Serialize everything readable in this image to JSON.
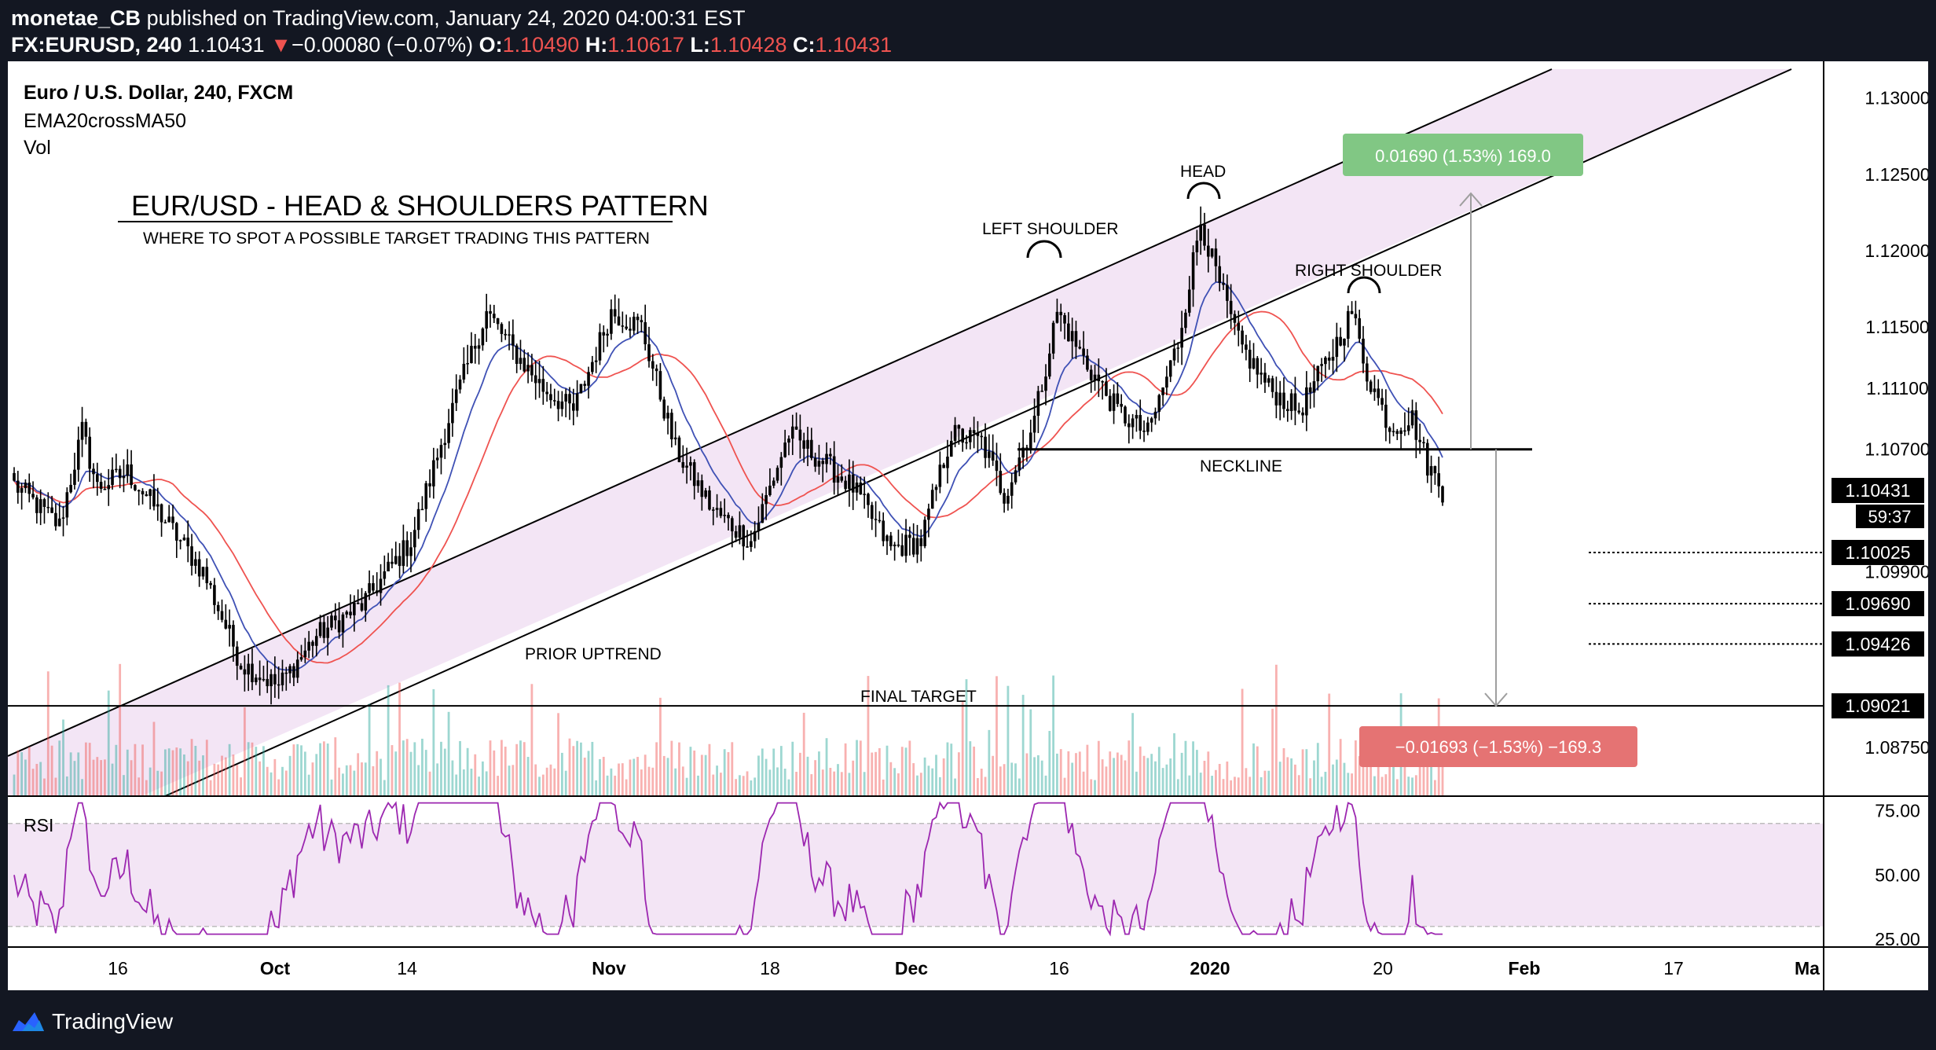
{
  "header": {
    "publisher": "monetae_CB",
    "published_text": "published on TradingView.com, January 24, 2020 04:00:31 EST",
    "symbol": "FX:EURUSD, 240",
    "last": "1.10431",
    "arrow": "▼",
    "change": "−0.00080 (−0.07%)",
    "o_label": "O:",
    "o_value": "1.10490",
    "h_label": "H:",
    "h_value": "1.10617",
    "l_label": "L:",
    "l_value": "1.10428",
    "c_label": "C:",
    "c_value": "1.10431"
  },
  "legend": {
    "line1": "Euro / U.S. Dollar, 240, FXCM",
    "line2": "EMA20crossMA50",
    "line3": "Vol"
  },
  "annotations": {
    "title": "EUR/USD - HEAD & SHOULDERS PATTERN",
    "subtitle": "WHERE TO SPOT A POSSIBLE TARGET TRADING THIS PATTERN",
    "left_shoulder": "LEFT SHOULDER",
    "head": "HEAD",
    "right_shoulder": "RIGHT SHOULDER",
    "neckline": "NECKLINE",
    "prior_uptrend": "PRIOR UPTREND",
    "final_target": "FINAL TARGET",
    "measure_up": "0.01690 (1.53%) 169.0",
    "measure_down": "−0.01693 (−1.53%) −169.3"
  },
  "price_axis": {
    "ticks": [
      "1.13000",
      "1.12500",
      "1.12000",
      "1.11500",
      "1.11100",
      "1.10700",
      "1.09900",
      "1.08750"
    ],
    "tick_values": [
      1.13,
      1.125,
      1.12,
      1.115,
      1.111,
      1.107,
      1.099,
      1.0875
    ],
    "current_price": "1.10431",
    "countdown": "59:37",
    "level_labels": [
      "1.10025",
      "1.09690",
      "1.09426",
      "1.09021"
    ],
    "level_values": [
      1.10025,
      1.0969,
      1.09426,
      1.09021
    ]
  },
  "rsi": {
    "label": "RSI",
    "ticks": [
      "75.00",
      "50.00",
      "25.00"
    ],
    "tick_values": [
      75,
      50,
      25
    ],
    "band": [
      30,
      70
    ]
  },
  "time_axis": {
    "labels": [
      "16",
      "Oct",
      "14",
      "Nov",
      "18",
      "Dec",
      "16",
      "2020",
      "20",
      "Feb",
      "17",
      "Ma"
    ],
    "bold": [
      false,
      true,
      false,
      true,
      false,
      true,
      false,
      true,
      false,
      true,
      false,
      true
    ]
  },
  "colors": {
    "up": "#26a69a",
    "down": "#ef5350",
    "candle": "#000000",
    "ema": "#3f51b5",
    "ma": "#ef5350",
    "channel_fill": "#f3e5f5",
    "rsi_line": "#9c27b0",
    "rsi_band": "#f3e5f5",
    "measure_up_bg": "#81c784",
    "measure_down_bg": "#e57373"
  },
  "chart_data": {
    "type": "candlestick",
    "symbol": "FX:EURUSD",
    "timeframe": "240",
    "y_range": [
      1.0843,
      1.1324
    ],
    "neckline": 1.107,
    "final_target": 1.09021,
    "anchors": [
      {
        "i": 0,
        "p": 1.1047
      },
      {
        "i": 12,
        "p": 1.102
      },
      {
        "i": 18,
        "p": 1.1082
      },
      {
        "i": 22,
        "p": 1.1045
      },
      {
        "i": 30,
        "p": 1.1055
      },
      {
        "i": 38,
        "p": 1.103
      },
      {
        "i": 50,
        "p": 1.099
      },
      {
        "i": 60,
        "p": 1.093
      },
      {
        "i": 70,
        "p": 1.0915
      },
      {
        "i": 80,
        "p": 1.0948
      },
      {
        "i": 92,
        "p": 1.0968
      },
      {
        "i": 105,
        "p": 1.101
      },
      {
        "i": 115,
        "p": 1.109
      },
      {
        "i": 125,
        "p": 1.116
      },
      {
        "i": 132,
        "p": 1.1135
      },
      {
        "i": 140,
        "p": 1.111
      },
      {
        "i": 148,
        "p": 1.1095
      },
      {
        "i": 158,
        "p": 1.116
      },
      {
        "i": 166,
        "p": 1.115
      },
      {
        "i": 175,
        "p": 1.107
      },
      {
        "i": 185,
        "p": 1.103
      },
      {
        "i": 195,
        "p": 1.101
      },
      {
        "i": 205,
        "p": 1.108
      },
      {
        "i": 215,
        "p": 1.106
      },
      {
        "i": 222,
        "p": 1.1045
      },
      {
        "i": 232,
        "p": 1.1005
      },
      {
        "i": 240,
        "p": 1.101
      },
      {
        "i": 248,
        "p": 1.108
      },
      {
        "i": 256,
        "p": 1.1075
      },
      {
        "i": 262,
        "p": 1.104
      },
      {
        "i": 270,
        "p": 1.109
      },
      {
        "i": 276,
        "p": 1.116
      },
      {
        "i": 284,
        "p": 1.1125
      },
      {
        "i": 292,
        "p": 1.1095
      },
      {
        "i": 300,
        "p": 1.108
      },
      {
        "i": 308,
        "p": 1.114
      },
      {
        "i": 314,
        "p": 1.122
      },
      {
        "i": 318,
        "p": 1.1185
      },
      {
        "i": 324,
        "p": 1.114
      },
      {
        "i": 332,
        "p": 1.111
      },
      {
        "i": 340,
        "p": 1.1095
      },
      {
        "i": 348,
        "p": 1.113
      },
      {
        "i": 354,
        "p": 1.116
      },
      {
        "i": 358,
        "p": 1.112
      },
      {
        "i": 364,
        "p": 1.1085
      },
      {
        "i": 370,
        "p": 1.109
      },
      {
        "i": 374,
        "p": 1.106
      },
      {
        "i": 378,
        "p": 1.1043
      }
    ],
    "rsi_range": [
      22,
      80
    ]
  }
}
